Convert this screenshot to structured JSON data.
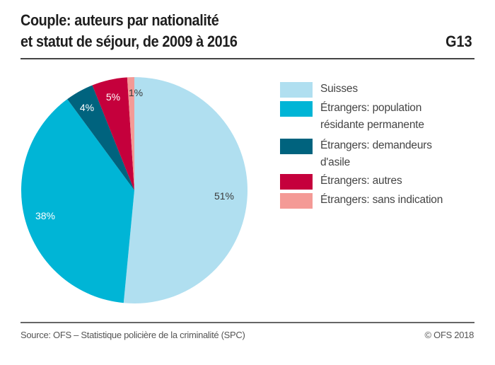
{
  "header": {
    "title_line1": "Couple: auteurs par nationalité",
    "title_line2": "et statut de séjour, de 2009 à 2016",
    "chart_id": "G13"
  },
  "footer": {
    "source": "Source: OFS – Statistique policière de la criminalité (SPC)",
    "copyright": "© OFS 2018"
  },
  "chart_data": {
    "type": "pie",
    "title": "Couple: auteurs par nationalité et statut de séjour, de 2009 à 2016",
    "start_angle": "top, clockwise",
    "legend_position": "right",
    "slices": [
      {
        "label": "Suisses",
        "value": 51,
        "data_label": "51%",
        "color": "#b0dff0",
        "label_color": "#3a3a3a"
      },
      {
        "label": "Étrangers: population résidante permanente",
        "legend_line1": "Étrangers: population",
        "legend_line2": "résidante permanente",
        "value": 38,
        "data_label": "38%",
        "color": "#00b5d6",
        "label_color": "#ffffff"
      },
      {
        "label": "Étrangers: demandeurs d'asile",
        "legend_line1": "Étrangers: demandeurs",
        "legend_line2": "d'asile",
        "value": 4,
        "data_label": "4%",
        "color": "#00637e",
        "label_color": "#ffffff"
      },
      {
        "label": "Étrangers: autres",
        "value": 5,
        "data_label": "5%",
        "color": "#c5003c",
        "label_color": "#ffffff"
      },
      {
        "label": "Étrangers: sans indication",
        "value": 1,
        "data_label": "1%",
        "color": "#f49a96",
        "label_color": "#3a3a3a"
      }
    ]
  }
}
